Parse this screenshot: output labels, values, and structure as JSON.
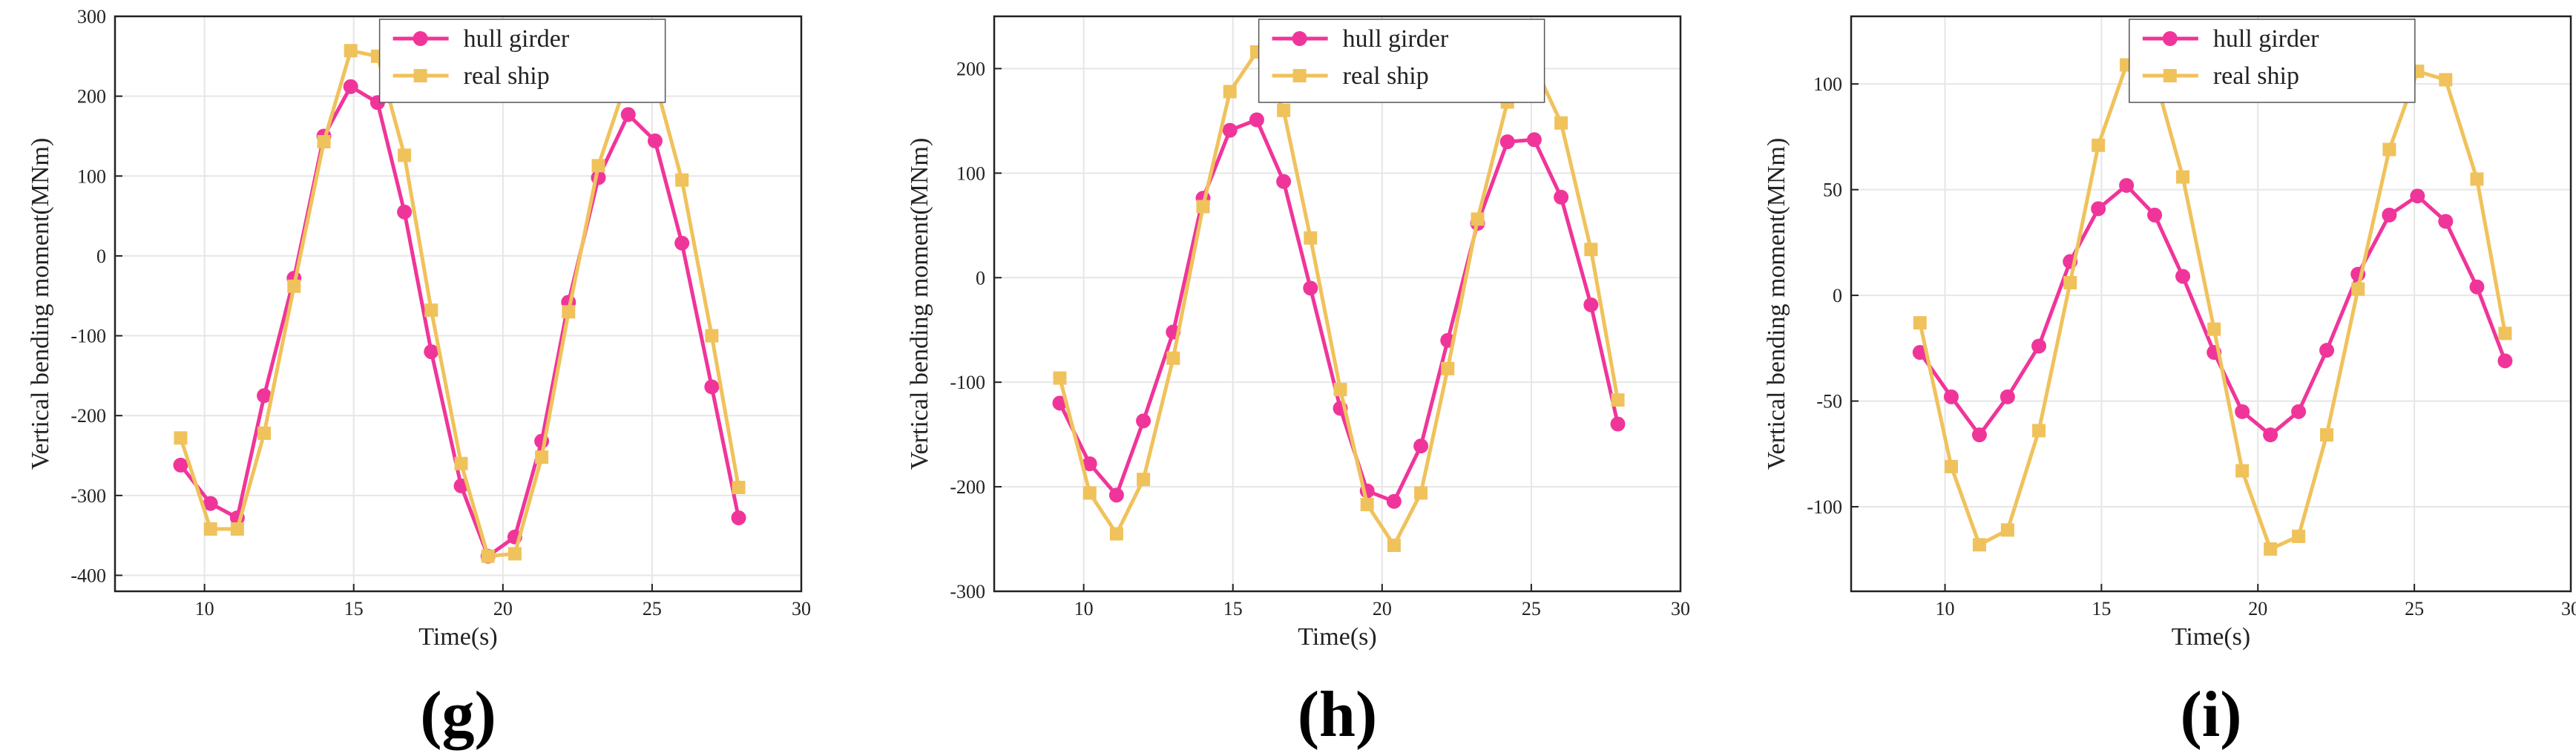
{
  "colors": {
    "hull": "#F0359A",
    "ship": "#F0C25C",
    "grid": "#E6E6E6",
    "axis": "#222222"
  },
  "chart_data": [
    {
      "type": "line",
      "label": "(g)",
      "xlabel": "Time(s)",
      "ylabel": "Vertical bending moment(MNm)",
      "xlim": [
        7,
        30
      ],
      "ylim": [
        -420,
        300
      ],
      "xticks": [
        10,
        15,
        20,
        25,
        30
      ],
      "yticks": [
        -400,
        -300,
        -200,
        -100,
        0,
        100,
        200,
        300
      ],
      "legend": "top-right",
      "series": [
        {
          "name": "hull girder",
          "key": "hull",
          "x": [
            9.2,
            10.2,
            11.1,
            12.0,
            13.0,
            14.0,
            14.9,
            15.8,
            16.7,
            17.6,
            18.6,
            19.5,
            20.4,
            21.3,
            22.2,
            23.2,
            24.2,
            25.1,
            26.0,
            27.0,
            27.9
          ],
          "y": [
            -262,
            -310,
            -328,
            -175,
            -28,
            150,
            212,
            192,
            55,
            -120,
            -288,
            -376,
            -352,
            -232,
            -58,
            98,
            177,
            144,
            16,
            -164,
            -328
          ]
        },
        {
          "name": "real ship",
          "key": "ship",
          "x": [
            9.2,
            10.2,
            11.1,
            12.0,
            13.0,
            14.0,
            14.9,
            15.8,
            16.7,
            17.6,
            18.6,
            19.5,
            20.4,
            21.3,
            22.2,
            23.2,
            24.2,
            25.1,
            26.0,
            27.0,
            27.9
          ],
          "y": [
            -228,
            -342,
            -342,
            -222,
            -38,
            143,
            257,
            250,
            126,
            -68,
            -260,
            -376,
            -373,
            -252,
            -70,
            113,
            225,
            219,
            95,
            -100,
            -290
          ]
        }
      ]
    },
    {
      "type": "line",
      "label": "(h)",
      "xlabel": "Time(s)",
      "ylabel": "Vertical bending moment(MNm)",
      "xlim": [
        7,
        30
      ],
      "ylim": [
        -300,
        250
      ],
      "xticks": [
        10,
        15,
        20,
        25,
        30
      ],
      "yticks": [
        -300,
        -200,
        -100,
        0,
        100,
        200
      ],
      "legend": "top-right",
      "series": [
        {
          "name": "hull girder",
          "key": "hull",
          "x": [
            9.2,
            10.2,
            11.1,
            12.0,
            13.0,
            14.0,
            14.9,
            15.8,
            16.7,
            17.6,
            18.6,
            19.5,
            20.4,
            21.3,
            22.2,
            23.2,
            24.2,
            25.1,
            26.0,
            27.0,
            27.9
          ],
          "y": [
            -120,
            -178,
            -208,
            -137,
            -52,
            76,
            141,
            151,
            92,
            -10,
            -125,
            -204,
            -214,
            -161,
            -60,
            52,
            130,
            132,
            77,
            -26,
            -140
          ]
        },
        {
          "name": "real ship",
          "key": "ship",
          "x": [
            9.2,
            10.2,
            11.1,
            12.0,
            13.0,
            14.0,
            14.9,
            15.8,
            16.7,
            17.6,
            18.6,
            19.5,
            20.4,
            21.3,
            22.2,
            23.2,
            24.2,
            25.1,
            26.0,
            27.0,
            27.9
          ],
          "y": [
            -96,
            -206,
            -245,
            -193,
            -77,
            68,
            178,
            216,
            160,
            38,
            -107,
            -217,
            -256,
            -206,
            -87,
            56,
            168,
            203,
            148,
            27,
            -117
          ]
        }
      ]
    },
    {
      "type": "line",
      "label": "(i)",
      "xlabel": "Time(s)",
      "ylabel": "Vertical bending moment(MNm)",
      "xlim": [
        7,
        30
      ],
      "ylim": [
        -140,
        132
      ],
      "xticks": [
        10,
        15,
        20,
        25,
        30
      ],
      "yticks": [
        -100,
        -50,
        0,
        50,
        100
      ],
      "legend": "top-right",
      "series": [
        {
          "name": "hull girder",
          "key": "hull",
          "x": [
            9.2,
            10.2,
            11.1,
            12.0,
            13.0,
            14.0,
            14.9,
            15.8,
            16.7,
            17.6,
            18.6,
            19.5,
            20.4,
            21.3,
            22.2,
            23.2,
            24.2,
            25.1,
            26.0,
            27.0,
            27.9
          ],
          "y": [
            -27,
            -48,
            -66,
            -48,
            -24,
            16,
            41,
            52,
            38,
            9,
            -27,
            -55,
            -66,
            -55,
            -26,
            10,
            38,
            47,
            35,
            4,
            -31
          ]
        },
        {
          "name": "real ship",
          "key": "ship",
          "x": [
            9.2,
            10.2,
            11.1,
            12.0,
            13.0,
            14.0,
            14.9,
            15.8,
            16.7,
            17.6,
            18.6,
            19.5,
            20.4,
            21.3,
            22.2,
            23.2,
            24.2,
            25.1,
            26.0,
            27.0,
            27.9
          ],
          "y": [
            -13,
            -81,
            -118,
            -111,
            -64,
            6,
            71,
            109,
            104,
            56,
            -16,
            -83,
            -120,
            -114,
            -66,
            3,
            69,
            106,
            102,
            55,
            -18
          ]
        }
      ]
    }
  ]
}
